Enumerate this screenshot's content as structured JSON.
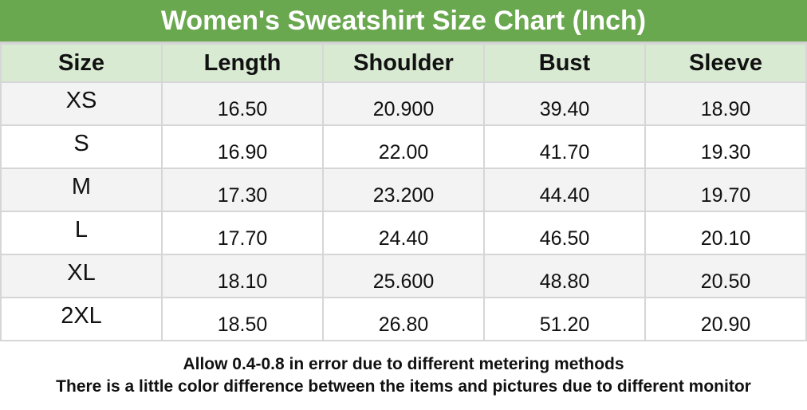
{
  "title": "Women's Sweatshirt Size Chart (Inch)",
  "colors": {
    "title_bg": "#6aa84f",
    "header_bg": "#d9ead3",
    "stripe": "#f3f3f3"
  },
  "columns": [
    "Size",
    "Length",
    "Shoulder",
    "Bust",
    "Sleeve"
  ],
  "rows": [
    [
      "XS",
      "16.50",
      "20.900",
      "39.40",
      "18.90"
    ],
    [
      "S",
      "16.90",
      "22.00",
      "41.70",
      "19.30"
    ],
    [
      "M",
      "17.30",
      "23.200",
      "44.40",
      "19.70"
    ],
    [
      "L",
      "17.70",
      "24.40",
      "46.50",
      "20.10"
    ],
    [
      "XL",
      "18.10",
      "25.600",
      "48.80",
      "20.50"
    ],
    [
      "2XL",
      "18.50",
      "26.80",
      "51.20",
      "20.90"
    ]
  ],
  "notes": [
    "Allow 0.4-0.8 in error due to different metering methods",
    "There is a little color difference between the items and pictures due to different monitor"
  ]
}
